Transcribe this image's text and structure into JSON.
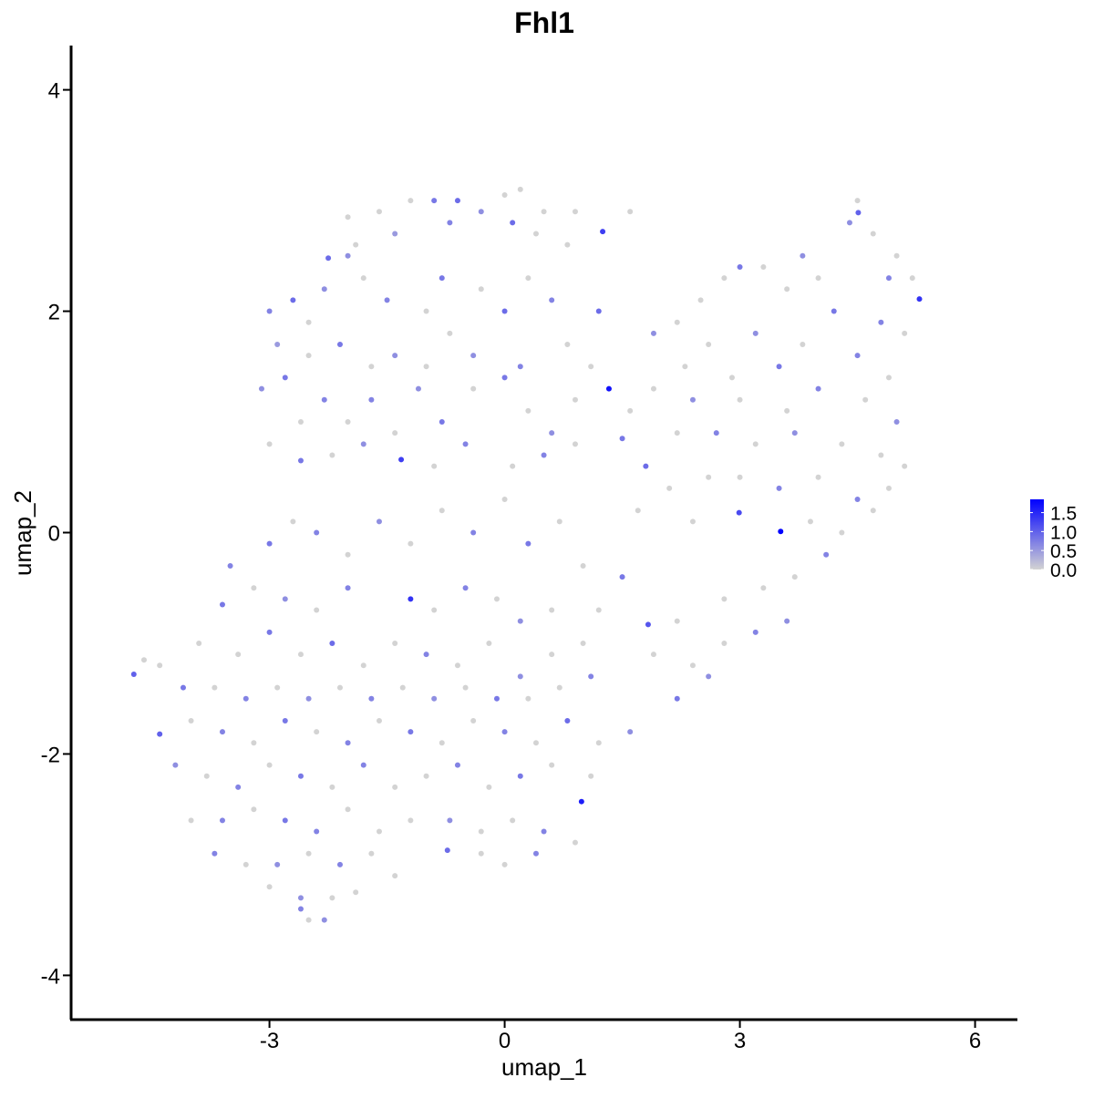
{
  "chart_data": {
    "type": "scatter",
    "title": "Fhl1",
    "xlabel": "umap_1",
    "ylabel": "umap_2",
    "xlim": [
      -5.53,
      6.54
    ],
    "ylim": [
      -4.4,
      4.4
    ],
    "xticks": [
      -3,
      0,
      3,
      6
    ],
    "yticks": [
      -4,
      -2,
      0,
      2,
      4
    ],
    "xtick_labels": [
      "-3",
      "0",
      "3",
      "6"
    ],
    "ytick_labels": [
      "-4",
      "-2",
      "0",
      "2",
      "4"
    ],
    "grid": false,
    "legend": {
      "placement": "right",
      "type": "colorbar",
      "ticks": [
        "0.0",
        "0.5",
        "1.0",
        "1.5"
      ],
      "tick_values": [
        0,
        0.5,
        1.0,
        1.5
      ],
      "range": [
        0,
        1.85
      ],
      "low_color": "#d3d3d3",
      "high_color": "#0000ff"
    },
    "point_format": [
      "umap_1",
      "umap_2",
      "expression"
    ],
    "points": [
      [
        -1.6,
        2.9,
        0
      ],
      [
        -1.2,
        3.0,
        0
      ],
      [
        -0.9,
        3.0,
        0.8
      ],
      [
        -0.6,
        3.0,
        0.9
      ],
      [
        -0.3,
        2.9,
        0.6
      ],
      [
        0,
        3.05,
        0
      ],
      [
        0.2,
        3.1,
        0
      ],
      [
        0.1,
        2.8,
        0.9
      ],
      [
        0.5,
        2.9,
        0
      ],
      [
        0.9,
        2.9,
        0
      ],
      [
        -2.0,
        2.85,
        0
      ],
      [
        -1.9,
        2.6,
        0
      ],
      [
        -1.4,
        2.7,
        0.5
      ],
      [
        -0.7,
        2.8,
        0.7
      ],
      [
        0.4,
        2.7,
        0
      ],
      [
        0.8,
        2.6,
        0
      ],
      [
        1.25,
        2.72,
        1.3
      ],
      [
        1.6,
        2.9,
        0
      ],
      [
        -2.25,
        2.48,
        0.9
      ],
      [
        -2.0,
        2.5,
        0.6
      ],
      [
        -3.0,
        2.0,
        0.7
      ],
      [
        -2.7,
        2.1,
        0.9
      ],
      [
        -2.5,
        1.9,
        0
      ],
      [
        -2.3,
        2.2,
        0.6
      ],
      [
        -1.8,
        2.3,
        0
      ],
      [
        -1.5,
        2.1,
        0.7
      ],
      [
        -1.0,
        2.0,
        0
      ],
      [
        -0.8,
        2.3,
        0.8
      ],
      [
        -0.3,
        2.2,
        0
      ],
      [
        0,
        2.0,
        0.9
      ],
      [
        0.3,
        2.3,
        0
      ],
      [
        0.6,
        2.1,
        0.7
      ],
      [
        1.2,
        2.0,
        0.9
      ],
      [
        -2.9,
        1.7,
        0.5
      ],
      [
        -2.5,
        1.6,
        0
      ],
      [
        -2.1,
        1.7,
        0.8
      ],
      [
        -1.7,
        1.5,
        0
      ],
      [
        -1.4,
        1.6,
        0.6
      ],
      [
        -1.0,
        1.5,
        0
      ],
      [
        -0.7,
        1.8,
        0
      ],
      [
        -0.4,
        1.6,
        0.6
      ],
      [
        0.2,
        1.5,
        0.7
      ],
      [
        0.8,
        1.7,
        0
      ],
      [
        1.1,
        1.5,
        0
      ],
      [
        -3.1,
        1.3,
        0.6
      ],
      [
        -2.8,
        1.4,
        0.8
      ],
      [
        -2.6,
        1.0,
        0
      ],
      [
        -2.3,
        1.2,
        0.7
      ],
      [
        -2.0,
        1.0,
        0
      ],
      [
        -1.7,
        1.2,
        0.7
      ],
      [
        -1.4,
        0.9,
        0
      ],
      [
        -1.1,
        1.3,
        0.6
      ],
      [
        -0.8,
        1.0,
        0.8
      ],
      [
        -0.4,
        1.3,
        0
      ],
      [
        0,
        1.4,
        0.8
      ],
      [
        0.3,
        1.1,
        0
      ],
      [
        0.6,
        0.9,
        0.6
      ],
      [
        0.9,
        1.2,
        0
      ],
      [
        1.33,
        1.3,
        1.7
      ],
      [
        1.6,
        1.1,
        0
      ],
      [
        -3.0,
        0.8,
        0
      ],
      [
        -2.6,
        0.65,
        0.8
      ],
      [
        -2.2,
        0.7,
        0
      ],
      [
        -1.8,
        0.8,
        0.6
      ],
      [
        -1.32,
        0.66,
        1.3
      ],
      [
        -0.9,
        0.6,
        0
      ],
      [
        -0.5,
        0.8,
        0.7
      ],
      [
        0.1,
        0.6,
        0
      ],
      [
        0.5,
        0.7,
        0.7
      ],
      [
        0.9,
        0.8,
        0
      ],
      [
        1.5,
        0.85,
        0.8
      ],
      [
        1.8,
        0.6,
        0.9
      ],
      [
        4.5,
        3.0,
        0
      ],
      [
        4.4,
        2.8,
        0.6
      ],
      [
        4.7,
        2.7,
        0
      ],
      [
        4.51,
        2.89,
        1.0
      ],
      [
        5.0,
        2.5,
        0
      ],
      [
        4.9,
        2.3,
        0.7
      ],
      [
        5.29,
        2.11,
        1.4
      ],
      [
        5.2,
        2.3,
        0
      ],
      [
        3.8,
        2.5,
        0.6
      ],
      [
        3.3,
        2.4,
        0
      ],
      [
        3.0,
        2.4,
        0.8
      ],
      [
        2.8,
        2.3,
        0
      ],
      [
        2.5,
        2.1,
        0
      ],
      [
        3.6,
        2.2,
        0
      ],
      [
        4.0,
        2.3,
        0
      ],
      [
        4.2,
        2.0,
        0.8
      ],
      [
        4.8,
        1.9,
        0.7
      ],
      [
        5.1,
        1.8,
        0
      ],
      [
        2.2,
        1.9,
        0
      ],
      [
        1.9,
        1.8,
        0.6
      ],
      [
        2.6,
        1.7,
        0
      ],
      [
        3.2,
        1.8,
        0.6
      ],
      [
        3.8,
        1.7,
        0
      ],
      [
        4.5,
        1.6,
        0.7
      ],
      [
        3.5,
        1.5,
        0.8
      ],
      [
        2.9,
        1.4,
        0
      ],
      [
        2.3,
        1.5,
        0
      ],
      [
        4.9,
        1.4,
        0
      ],
      [
        1.9,
        1.3,
        0
      ],
      [
        2.4,
        1.2,
        0.6
      ],
      [
        3.0,
        1.2,
        0
      ],
      [
        3.6,
        1.1,
        0
      ],
      [
        4.0,
        1.3,
        0.7
      ],
      [
        4.6,
        1.2,
        0
      ],
      [
        5.0,
        1.0,
        0.6
      ],
      [
        2.2,
        0.9,
        0
      ],
      [
        2.7,
        0.9,
        0.7
      ],
      [
        3.2,
        0.8,
        0
      ],
      [
        3.7,
        0.9,
        0.6
      ],
      [
        4.3,
        0.8,
        0
      ],
      [
        4.8,
        0.7,
        0
      ],
      [
        5.1,
        0.6,
        0
      ],
      [
        2.1,
        0.4,
        0
      ],
      [
        2.6,
        0.5,
        0
      ],
      [
        3.0,
        0.5,
        0
      ],
      [
        3.5,
        0.4,
        0.7
      ],
      [
        4.0,
        0.5,
        0
      ],
      [
        4.5,
        0.3,
        0.7
      ],
      [
        4.9,
        0.4,
        0
      ],
      [
        2.99,
        0.18,
        1.2
      ],
      [
        3.52,
        0.01,
        1.85
      ],
      [
        3.9,
        0.1,
        0
      ],
      [
        4.3,
        0.0,
        0
      ],
      [
        4.7,
        0.2,
        0
      ],
      [
        2.4,
        0.1,
        0
      ],
      [
        1.7,
        0.2,
        0
      ],
      [
        4.1,
        -0.2,
        0.7
      ],
      [
        3.7,
        -0.4,
        0
      ],
      [
        3.3,
        -0.5,
        0
      ],
      [
        2.8,
        -0.6,
        0
      ],
      [
        3.6,
        -0.8,
        0.6
      ],
      [
        3.2,
        -0.9,
        0.7
      ],
      [
        2.8,
        -1.0,
        0
      ],
      [
        2.4,
        -1.2,
        0
      ],
      [
        2.2,
        -1.5,
        0.8
      ],
      [
        2.6,
        -1.3,
        0.6
      ],
      [
        1.9,
        -1.1,
        0
      ],
      [
        2.2,
        -0.8,
        0
      ],
      [
        1.83,
        -0.83,
        1.1
      ],
      [
        1.5,
        -0.4,
        0.8
      ],
      [
        1.2,
        -0.7,
        0
      ],
      [
        1.0,
        -1.0,
        0
      ],
      [
        -3.0,
        -0.1,
        0.8
      ],
      [
        -2.7,
        0.1,
        0
      ],
      [
        -2.4,
        0.0,
        0.7
      ],
      [
        -2.0,
        -0.2,
        0
      ],
      [
        -1.6,
        0.1,
        0.6
      ],
      [
        -1.2,
        -0.1,
        0
      ],
      [
        -0.8,
        0.2,
        0
      ],
      [
        -0.4,
        0.0,
        0.7
      ],
      [
        0,
        0.3,
        0
      ],
      [
        0.3,
        -0.1,
        0.8
      ],
      [
        0.7,
        0.1,
        0
      ],
      [
        1.0,
        -0.3,
        0
      ],
      [
        -3.5,
        -0.3,
        0.7
      ],
      [
        -3.2,
        -0.5,
        0
      ],
      [
        -2.8,
        -0.6,
        0.6
      ],
      [
        -2.4,
        -0.7,
        0
      ],
      [
        -2.0,
        -0.5,
        0.7
      ],
      [
        -1.2,
        -0.6,
        1.4
      ],
      [
        -0.9,
        -0.7,
        0
      ],
      [
        -0.5,
        -0.5,
        0.7
      ],
      [
        -0.1,
        -0.6,
        0
      ],
      [
        0.2,
        -0.8,
        0.6
      ],
      [
        0.6,
        -0.7,
        0
      ],
      [
        -3.6,
        -0.65,
        0.8
      ],
      [
        -3.9,
        -1.0,
        0
      ],
      [
        -3.4,
        -1.1,
        0
      ],
      [
        -3.0,
        -0.9,
        0.8
      ],
      [
        -2.6,
        -1.1,
        0
      ],
      [
        -2.2,
        -1.0,
        0.9
      ],
      [
        -1.8,
        -1.2,
        0
      ],
      [
        -1.4,
        -1.0,
        0
      ],
      [
        -1.0,
        -1.1,
        0.7
      ],
      [
        -0.6,
        -1.2,
        0
      ],
      [
        -0.2,
        -1.0,
        0
      ],
      [
        0.2,
        -1.3,
        0.6
      ],
      [
        0.6,
        -1.1,
        0
      ],
      [
        -4.4,
        -1.2,
        0
      ],
      [
        -4.73,
        -1.28,
        1.0
      ],
      [
        -4.6,
        -1.15,
        0
      ],
      [
        -4.1,
        -1.4,
        0.8
      ],
      [
        -3.7,
        -1.4,
        0
      ],
      [
        -3.3,
        -1.5,
        0.7
      ],
      [
        -2.9,
        -1.4,
        0
      ],
      [
        -2.5,
        -1.5,
        0.6
      ],
      [
        -2.1,
        -1.4,
        0
      ],
      [
        -1.7,
        -1.5,
        0.7
      ],
      [
        -1.3,
        -1.4,
        0
      ],
      [
        -0.9,
        -1.5,
        0.6
      ],
      [
        -0.5,
        -1.4,
        0
      ],
      [
        -0.1,
        -1.5,
        0.8
      ],
      [
        0.3,
        -1.5,
        0
      ],
      [
        0.7,
        -1.4,
        0
      ],
      [
        1.1,
        -1.3,
        0.7
      ],
      [
        -4.4,
        -1.82,
        1.0
      ],
      [
        -4.0,
        -1.7,
        0
      ],
      [
        -3.6,
        -1.8,
        0.7
      ],
      [
        -3.2,
        -1.9,
        0
      ],
      [
        -2.8,
        -1.7,
        0.8
      ],
      [
        -2.4,
        -1.8,
        0
      ],
      [
        -2.0,
        -1.9,
        0.7
      ],
      [
        -1.6,
        -1.7,
        0
      ],
      [
        -1.2,
        -1.8,
        0.8
      ],
      [
        -0.8,
        -1.9,
        0
      ],
      [
        -0.4,
        -1.7,
        0
      ],
      [
        0,
        -1.8,
        0.7
      ],
      [
        0.4,
        -1.9,
        0
      ],
      [
        0.8,
        -1.7,
        0.9
      ],
      [
        1.2,
        -1.9,
        0
      ],
      [
        1.6,
        -1.8,
        0.6
      ],
      [
        -4.2,
        -2.1,
        0.6
      ],
      [
        -3.8,
        -2.2,
        0
      ],
      [
        -3.4,
        -2.3,
        0.7
      ],
      [
        -3.0,
        -2.1,
        0
      ],
      [
        -2.6,
        -2.2,
        0.8
      ],
      [
        -2.2,
        -2.3,
        0
      ],
      [
        -1.8,
        -2.1,
        0.7
      ],
      [
        -1.4,
        -2.3,
        0
      ],
      [
        -1.0,
        -2.2,
        0
      ],
      [
        -0.6,
        -2.1,
        0.7
      ],
      [
        -0.2,
        -2.3,
        0
      ],
      [
        0.2,
        -2.2,
        0.8
      ],
      [
        0.6,
        -2.1,
        0
      ],
      [
        0.98,
        -2.43,
        1.6
      ],
      [
        1.1,
        -2.2,
        0
      ],
      [
        -4.0,
        -2.6,
        0
      ],
      [
        -3.6,
        -2.6,
        0.7
      ],
      [
        -3.2,
        -2.5,
        0
      ],
      [
        -2.8,
        -2.6,
        0.8
      ],
      [
        -2.4,
        -2.7,
        0.7
      ],
      [
        -2.0,
        -2.5,
        0
      ],
      [
        -1.6,
        -2.7,
        0
      ],
      [
        -1.2,
        -2.6,
        0
      ],
      [
        -0.7,
        -2.6,
        0.6
      ],
      [
        -0.3,
        -2.7,
        0
      ],
      [
        0.1,
        -2.6,
        0
      ],
      [
        0.5,
        -2.7,
        0.7
      ],
      [
        0.9,
        -2.8,
        0
      ],
      [
        -3.7,
        -2.9,
        0.7
      ],
      [
        -3.3,
        -3.0,
        0
      ],
      [
        -2.9,
        -3.0,
        0.6
      ],
      [
        -2.5,
        -2.9,
        0
      ],
      [
        -2.1,
        -3.0,
        0.7
      ],
      [
        -1.7,
        -2.9,
        0
      ],
      [
        -1.4,
        -3.1,
        0
      ],
      [
        -0.73,
        -2.87,
        0.9
      ],
      [
        -0.3,
        -2.9,
        0
      ],
      [
        0,
        -3.0,
        0
      ],
      [
        0.4,
        -2.9,
        0.7
      ],
      [
        -3.0,
        -3.2,
        0
      ],
      [
        -2.6,
        -3.3,
        0.6
      ],
      [
        -2.2,
        -3.3,
        0
      ],
      [
        -1.9,
        -3.25,
        0
      ],
      [
        -2.5,
        -3.5,
        0
      ],
      [
        -2.3,
        -3.5,
        0.6
      ],
      [
        -2.6,
        -3.4,
        0.7
      ]
    ]
  }
}
